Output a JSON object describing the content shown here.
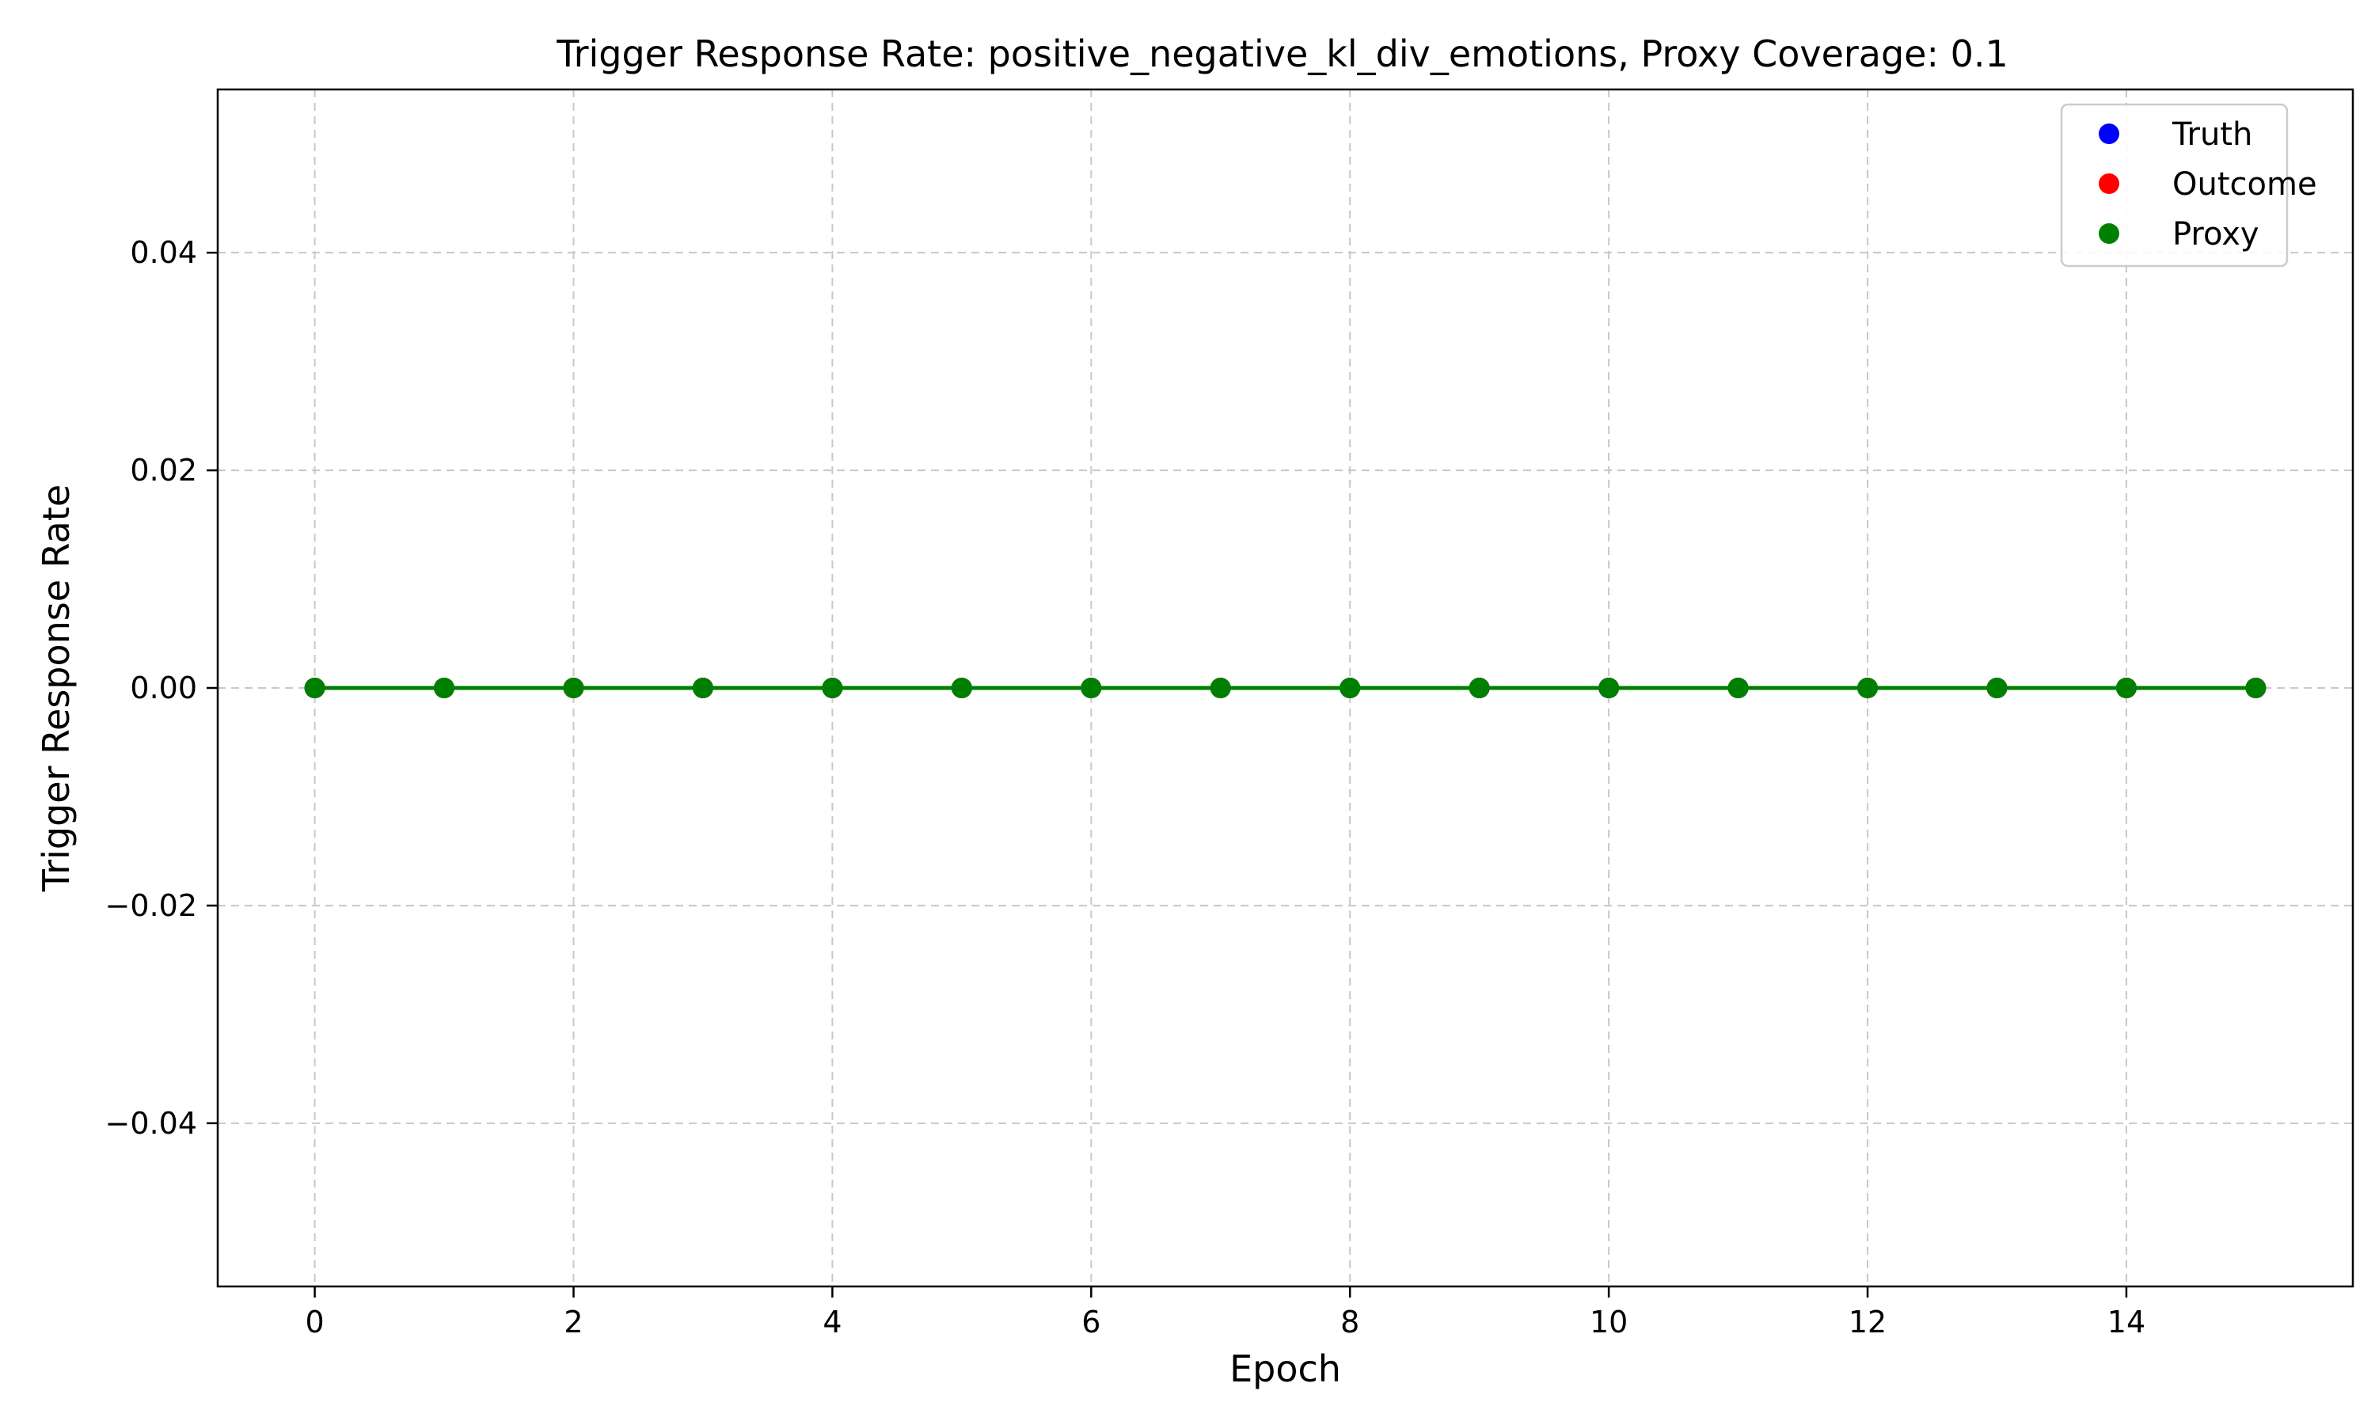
{
  "chart_data": {
    "type": "line",
    "title": "Trigger Response Rate: positive_negative_kl_div_emotions, Proxy Coverage: 0.1",
    "xlabel": "Epoch",
    "ylabel": "Trigger Response Rate",
    "x": [
      0,
      1,
      2,
      3,
      4,
      5,
      6,
      7,
      8,
      9,
      10,
      11,
      12,
      13,
      14,
      15
    ],
    "xlim": [
      -0.75,
      15.75
    ],
    "ylim": [
      -0.055,
      0.055
    ],
    "xticks": [
      0,
      2,
      4,
      6,
      8,
      10,
      12,
      14
    ],
    "xtick_labels": [
      "0",
      "2",
      "4",
      "6",
      "8",
      "10",
      "12",
      "14"
    ],
    "yticks": [
      -0.04,
      -0.02,
      0.0,
      0.02,
      0.04
    ],
    "ytick_labels": [
      "−0.04",
      "−0.02",
      "0.00",
      "0.02",
      "0.04"
    ],
    "grid": true,
    "legend_position": "top-right",
    "series": [
      {
        "name": "Truth",
        "color": "#0000ff",
        "marker": "circle",
        "values": [
          0,
          0,
          0,
          0,
          0,
          0,
          0,
          0,
          0,
          0,
          0,
          0,
          0,
          0,
          0,
          0
        ]
      },
      {
        "name": "Outcome",
        "color": "#ff0000",
        "marker": "circle",
        "values": [
          0,
          0,
          0,
          0,
          0,
          0,
          0,
          0,
          0,
          0,
          0,
          0,
          0,
          0,
          0,
          0
        ]
      },
      {
        "name": "Proxy",
        "color": "#008000",
        "marker": "circle",
        "values": [
          0,
          0,
          0,
          0,
          0,
          0,
          0,
          0,
          0,
          0,
          0,
          0,
          0,
          0,
          0,
          0
        ]
      }
    ]
  }
}
